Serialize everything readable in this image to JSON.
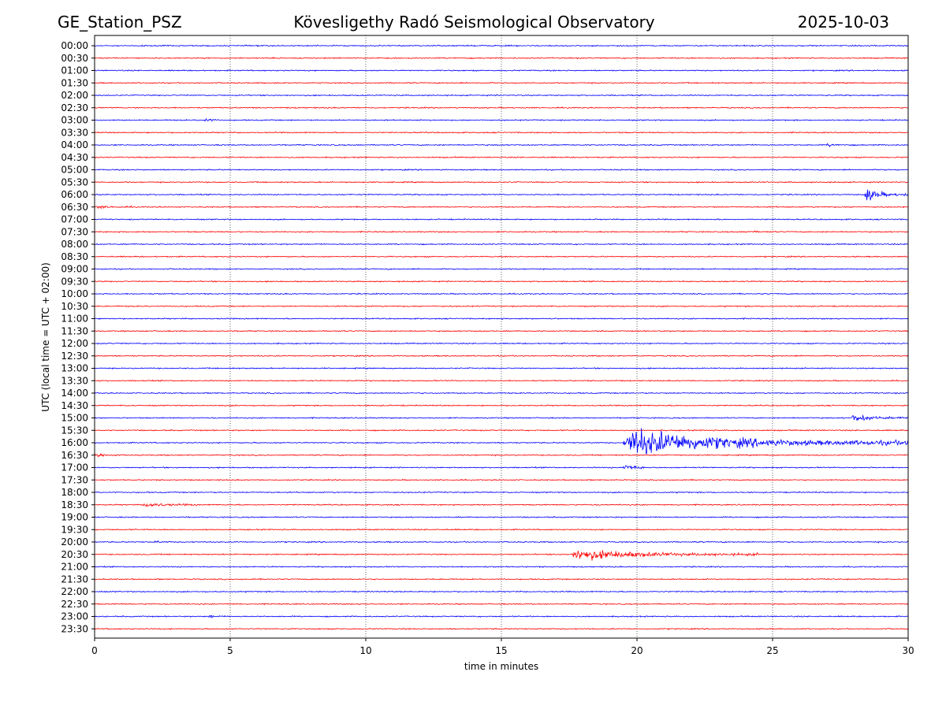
{
  "header": {
    "station": "GE_Station_PSZ",
    "observatory": "Kövesligethy Radó Seismological Observatory",
    "date": "2025-10-03"
  },
  "chart_data": {
    "type": "line",
    "title": "Kövesligethy Radó Seismological Observatory",
    "xlabel": "time in minutes",
    "ylabel": "UTC (local time = UTC + 02:00)",
    "xlim": [
      0,
      30
    ],
    "xticks": [
      0,
      5,
      10,
      15,
      20,
      25,
      30
    ],
    "grid": "vertical dotted at 5-minute ticks",
    "row_labels": [
      "00:00",
      "00:30",
      "01:00",
      "01:30",
      "02:00",
      "02:30",
      "03:00",
      "03:30",
      "04:00",
      "04:30",
      "05:00",
      "05:30",
      "06:00",
      "06:30",
      "07:00",
      "07:30",
      "08:00",
      "08:30",
      "09:00",
      "09:30",
      "10:00",
      "10:30",
      "11:00",
      "11:30",
      "12:00",
      "12:30",
      "13:00",
      "13:30",
      "14:00",
      "14:30",
      "15:00",
      "15:30",
      "16:00",
      "16:30",
      "17:00",
      "17:30",
      "18:00",
      "18:30",
      "19:00",
      "19:30",
      "20:00",
      "20:30",
      "21:00",
      "21:30",
      "22:00",
      "22:30",
      "23:00",
      "23:30"
    ],
    "trace_colors": [
      "#0000ff",
      "#ff0000"
    ],
    "noise_amplitude": 1,
    "events": [
      {
        "row": 6,
        "start": 4.0,
        "end": 4.8,
        "amp": 4
      },
      {
        "row": 8,
        "start": 27.0,
        "end": 28.0,
        "amp": 2.5
      },
      {
        "row": 12,
        "start": 28.4,
        "end": 30.0,
        "amp": 13
      },
      {
        "row": 13,
        "start": 0.0,
        "end": 1.5,
        "amp": 2.5
      },
      {
        "row": 15,
        "start": 24.0,
        "end": 25.0,
        "amp": 2
      },
      {
        "row": 30,
        "start": 27.9,
        "end": 30.0,
        "amp": 7
      },
      {
        "row": 32,
        "start": 19.5,
        "end": 30.0,
        "amp": 28
      },
      {
        "row": 33,
        "start": 0.0,
        "end": 1.0,
        "amp": 4
      },
      {
        "row": 34,
        "start": 19.5,
        "end": 20.3,
        "amp": 10
      },
      {
        "row": 37,
        "start": 1.8,
        "end": 3.8,
        "amp": 5
      },
      {
        "row": 40,
        "start": 2.2,
        "end": 2.8,
        "amp": 2
      },
      {
        "row": 41,
        "start": 17.6,
        "end": 24.5,
        "amp": 11
      },
      {
        "row": 46,
        "start": 4.2,
        "end": 4.8,
        "amp": 3
      }
    ]
  }
}
